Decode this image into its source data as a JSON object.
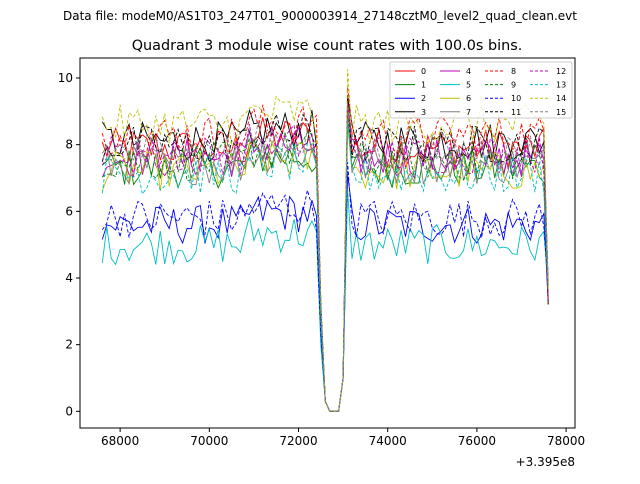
{
  "figure": {
    "suptitle": "Data file: modeM0/AS1T03_247T01_9000003914_27148cztM0_level2_quad_clean.evt",
    "title": "Quadrant 3 module wise count rates with 100.0s bins.",
    "offset_label": "+3.395e8"
  },
  "chart_data": {
    "type": "line",
    "title": "Quadrant 3 module wise count rates with 100.0s bins.",
    "xlabel": "",
    "ylabel": "",
    "x_offset": 339500000,
    "xlim": [
      67100,
      78200
    ],
    "ylim": [
      -0.5,
      10.6
    ],
    "xticks": [
      68000,
      70000,
      72000,
      74000,
      76000,
      78000
    ],
    "xtick_labels": [
      "68000",
      "70000",
      "72000",
      "74000",
      "76000",
      "78000"
    ],
    "yticks": [
      0,
      2,
      4,
      6,
      8,
      10
    ],
    "ytick_labels": [
      "0",
      "2",
      "4",
      "6",
      "8",
      "10"
    ],
    "grid": false,
    "legend_position": "top-right",
    "x_start": 67600,
    "bin_width": 100,
    "n_bins": 101,
    "gap": {
      "x_from": 72500,
      "x_to": 73000,
      "levels": [
        3.0,
        0.3,
        0.0,
        0.0,
        0.0,
        1.0
      ]
    },
    "series": [
      {
        "name": "0",
        "color": "#ff0000",
        "dash": "solid",
        "level": 7.9
      },
      {
        "name": "1",
        "color": "#008000",
        "dash": "solid",
        "level": 7.3
      },
      {
        "name": "2",
        "color": "#0000ff",
        "dash": "solid",
        "level": 5.6
      },
      {
        "name": "3",
        "color": "#000000",
        "dash": "solid",
        "level": 8.1
      },
      {
        "name": "4",
        "color": "#c000c0",
        "dash": "solid",
        "level": 7.6
      },
      {
        "name": "5",
        "color": "#00bfbf",
        "dash": "solid",
        "level": 5.0
      },
      {
        "name": "6",
        "color": "#bfbf00",
        "dash": "solid",
        "level": 7.2
      },
      {
        "name": "7",
        "color": "#808080",
        "dash": "solid",
        "level": 7.4
      },
      {
        "name": "8",
        "color": "#ff0000",
        "dash": "dashed",
        "level": 8.3
      },
      {
        "name": "9",
        "color": "#008000",
        "dash": "dashed",
        "level": 7.5
      },
      {
        "name": "10",
        "color": "#0000ff",
        "dash": "dashed",
        "level": 5.8
      },
      {
        "name": "11",
        "color": "#000000",
        "dash": "dashed",
        "level": 8.0
      },
      {
        "name": "12",
        "color": "#c000c0",
        "dash": "dashed",
        "level": 7.7
      },
      {
        "name": "13",
        "color": "#00bfbf",
        "dash": "dashed",
        "level": 7.1
      },
      {
        "name": "14",
        "color": "#bfbf00",
        "dash": "dashed",
        "level": 8.6
      },
      {
        "name": "15",
        "color": "#808080",
        "dash": "dashed",
        "level": 7.8
      }
    ]
  }
}
